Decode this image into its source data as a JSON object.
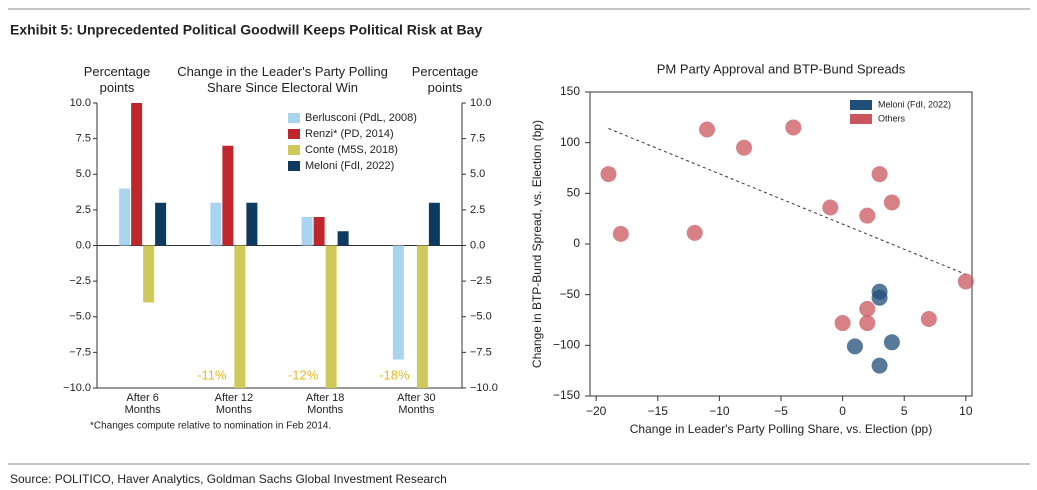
{
  "header": {
    "title": "Exhibit 5: Unprecedented Political Goodwill Keeps Political Risk at Bay"
  },
  "chart_data": [
    {
      "type": "bar",
      "title": "Change in the Leader's Party Polling Share Since Electoral Win",
      "y_label": "Percentage points",
      "y2_label": "Percentage points",
      "categories": [
        "After 6 Months",
        "After 12 Months",
        "After 18 Months",
        "After 30 Months"
      ],
      "series": [
        {
          "name": "Berlusconi (PdL, 2008)",
          "color": "#a9d4f0",
          "values": [
            4,
            3,
            2,
            -8
          ]
        },
        {
          "name": "Renzi* (PD, 2014)",
          "color": "#c0272d",
          "values": [
            10,
            7,
            2,
            null
          ]
        },
        {
          "name": "Conte (M5S, 2018)",
          "color": "#cfc95a",
          "values": [
            -4,
            -11,
            -12,
            -18
          ],
          "value_labels": [
            null,
            "-11%",
            "-12%",
            "-18%"
          ]
        },
        {
          "name": "Meloni (FdI, 2022)",
          "color": "#0d3a5e",
          "values": [
            3,
            3,
            1,
            3
          ]
        }
      ],
      "ylim": [
        -10,
        10
      ],
      "yticks": [
        {
          "value": 10,
          "label": "10.0"
        },
        {
          "value": 7.5,
          "label": "7.5"
        },
        {
          "value": 5,
          "label": "5.0"
        },
        {
          "value": 2.5,
          "label": "2.5"
        },
        {
          "value": 0,
          "label": "0.0"
        },
        {
          "value": -2.5,
          "label": "−2.5"
        },
        {
          "value": -5,
          "label": "−5.0"
        },
        {
          "value": -7.5,
          "label": "−7.5"
        },
        {
          "value": -10,
          "label": "−10.0"
        }
      ],
      "y2lim": [
        -10,
        10
      ],
      "y2ticks": [
        {
          "value": 10,
          "label": "10.0"
        },
        {
          "value": 7.5,
          "label": "7.5"
        },
        {
          "value": 5,
          "label": "5.0"
        },
        {
          "value": 2.5,
          "label": "2.5"
        },
        {
          "value": 0,
          "label": "0.0"
        },
        {
          "value": -2.5,
          "label": "−2.5"
        },
        {
          "value": -5,
          "label": "−5.0"
        },
        {
          "value": -7.5,
          "label": "−7.5"
        },
        {
          "value": -10,
          "label": "−10.0"
        }
      ],
      "value_label_color": "#e8b923",
      "legend": "upper right",
      "note": "*Changes compute relative to nomination in Feb 2014."
    },
    {
      "type": "scatter",
      "title": "PM Party Approval and BTP-Bund Spreads",
      "x_label": "Change in Leader's Party Polling Share, vs. Election (pp)",
      "y_label": "Change in BTP-Bund Spread, vs. Election (bp)",
      "series": [
        {
          "name": "Meloni (FdI, 2022)",
          "color": "#1f4e79",
          "x": [
            3,
            3,
            1,
            4,
            3
          ],
          "values": [
            -47,
            -53,
            -101,
            -97,
            -120
          ]
        },
        {
          "name": "Others",
          "color": "#c9555d",
          "x": [
            -19,
            -18,
            -12,
            -11,
            -8,
            -4,
            -1,
            2,
            3,
            4,
            10,
            7,
            2,
            2,
            0
          ],
          "values": [
            69,
            10,
            11,
            113,
            95,
            115,
            36,
            28,
            69,
            41,
            -37,
            -74,
            -64,
            -78,
            -78
          ]
        }
      ],
      "trendline": {
        "x": [
          -19,
          10
        ],
        "values": [
          114,
          -30
        ]
      },
      "xlim": [
        -20.5,
        10.5
      ],
      "xticks": [
        {
          "value": -20,
          "label": "−20"
        },
        {
          "value": -15,
          "label": "−15"
        },
        {
          "value": -10,
          "label": "−10"
        },
        {
          "value": -5,
          "label": "−5"
        },
        0,
        5,
        10
      ],
      "ylim": [
        -150,
        150
      ],
      "yticks": [
        150,
        100,
        50,
        0,
        {
          "value": -50,
          "label": "−50"
        },
        {
          "value": -100,
          "label": "−100"
        },
        {
          "value": -150,
          "label": "−150"
        }
      ],
      "legend": "upper right"
    }
  ],
  "footer": {
    "source": "Source: POLITICO, Haver Analytics, Goldman Sachs Global Investment Research"
  }
}
